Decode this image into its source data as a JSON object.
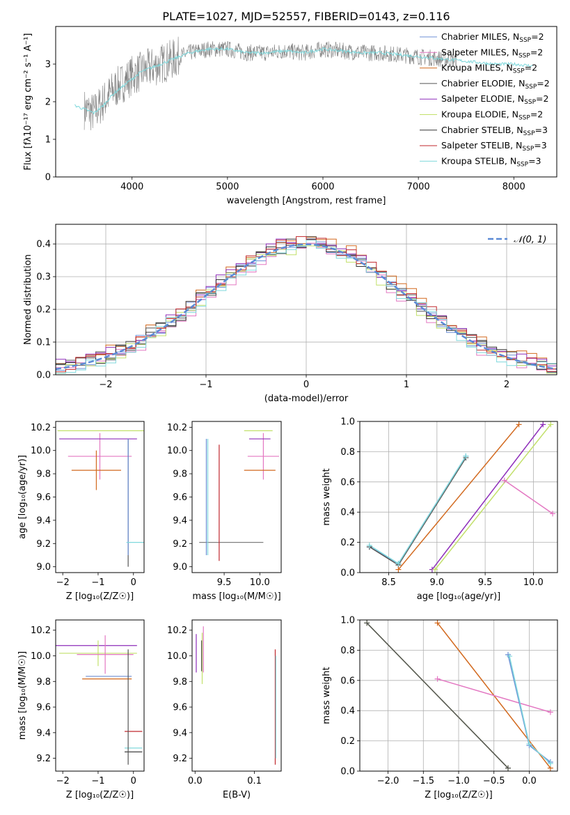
{
  "figure": {
    "title": "PLATE=1027, MJD=52557, FIBERID=0143, z=0.116"
  },
  "legend_entries": [
    {
      "label": "Chabrier MILES, N",
      "sub": "SSP",
      "eq": "=2",
      "color": "#6b8fd6"
    },
    {
      "label": "Salpeter MILES, N",
      "sub": "SSP",
      "eq": "=2",
      "color": "#e377c2"
    },
    {
      "label": "Kroupa MILES, N",
      "sub": "SSP",
      "eq": "=2",
      "color": "#d2691e"
    },
    {
      "label": "Chabrier ELODIE, N",
      "sub": "SSP",
      "eq": "=2",
      "color": "#555555"
    },
    {
      "label": "Salpeter ELODIE, N",
      "sub": "SSP",
      "eq": "=2",
      "color": "#8e2dba"
    },
    {
      "label": "Kroupa ELODIE, N",
      "sub": "SSP",
      "eq": "=2",
      "color": "#c2e06a"
    },
    {
      "label": "Chabrier STELIB, N",
      "sub": "SSP",
      "eq": "=3",
      "color": "#333333"
    },
    {
      "label": "Salpeter STELIB, N",
      "sub": "SSP",
      "eq": "=3",
      "color": "#c0282d"
    },
    {
      "label": "Kroupa STELIB, N",
      "sub": "SSP",
      "eq": "=3",
      "color": "#7fd8dc"
    }
  ],
  "chart_data": [
    {
      "id": "spectrum",
      "type": "line",
      "xlabel": "wavelength [Angstrom, rest frame]",
      "ylabel": "Flux [fλ10⁻¹⁷ erg cm⁻² s⁻¹ A⁻¹]",
      "xlim": [
        3200,
        8450
      ],
      "ylim": [
        0,
        4.0
      ],
      "xticks": [
        4000,
        5000,
        6000,
        7000,
        8000
      ],
      "yticks": [
        0,
        1,
        2,
        3
      ],
      "grid": false,
      "legend": "upper-right",
      "series": [
        {
          "name": "data",
          "color": "#808080",
          "x": [
            3500,
            3600,
            3700,
            3800,
            3900,
            4000,
            4200,
            4400,
            4600,
            4800,
            5000,
            5200,
            5400,
            5600,
            5800,
            6000,
            6200,
            6400,
            6600,
            6800,
            7000,
            7200,
            7400
          ],
          "y": [
            1.8,
            1.7,
            2.0,
            2.3,
            2.5,
            2.7,
            2.9,
            3.1,
            3.3,
            3.4,
            3.4,
            3.3,
            3.3,
            3.35,
            3.3,
            3.4,
            3.35,
            3.3,
            3.3,
            3.25,
            3.2,
            3.15,
            3.1
          ]
        },
        {
          "name": "model",
          "color": "#7fd8dc",
          "x": [
            3400,
            3500,
            3600,
            3700,
            3800,
            3900,
            4000,
            4100,
            4200,
            4400,
            4600,
            4800,
            5000,
            5200,
            5400,
            5600,
            5800,
            6000,
            6200,
            6400,
            6600,
            6800,
            7000,
            7200,
            7400,
            7600,
            7800,
            8000,
            8200
          ],
          "y": [
            1.9,
            1.8,
            1.7,
            1.9,
            2.2,
            2.4,
            2.6,
            2.8,
            2.9,
            3.1,
            3.3,
            3.4,
            3.4,
            3.3,
            3.3,
            3.35,
            3.3,
            3.4,
            3.35,
            3.3,
            3.3,
            3.25,
            3.2,
            3.15,
            3.1,
            3.05,
            3.0,
            3.0,
            2.95
          ]
        }
      ]
    },
    {
      "id": "residuals",
      "type": "line",
      "xlabel": "(data-model)/error",
      "ylabel": "Normed distribution",
      "xlim": [
        -2.5,
        2.5
      ],
      "ylim": [
        0,
        0.46
      ],
      "xticks": [
        -2,
        -1,
        0,
        1,
        2
      ],
      "yticks": [
        0.0,
        0.1,
        0.2,
        0.3,
        0.4
      ],
      "grid": true,
      "legend": "upper-right",
      "reference": {
        "name": "𝒩(0, 1)",
        "mu": 0,
        "sigma": 1,
        "color": "#5b8ad6"
      },
      "bin_width": 0.1,
      "series": [
        {
          "color": "#6b8fd6",
          "offset": 0.0
        },
        {
          "color": "#e377c2",
          "offset": -0.012
        },
        {
          "color": "#d2691e",
          "offset": 0.014
        },
        {
          "color": "#555555",
          "offset": 0.005
        },
        {
          "color": "#8e2dba",
          "offset": 0.01
        },
        {
          "color": "#c2e06a",
          "offset": -0.008
        },
        {
          "color": "#333333",
          "offset": 0.003
        },
        {
          "color": "#c0282d",
          "offset": 0.006
        },
        {
          "color": "#7fd8dc",
          "offset": -0.004
        }
      ]
    },
    {
      "id": "age_vs_Z",
      "type": "scatter",
      "xlabel": "Z [log₁₀(Z/Z☉)]",
      "ylabel": "age  [log₁₀(age/yr)]",
      "xlim": [
        -2.2,
        0.3
      ],
      "ylim": [
        8.95,
        10.25
      ],
      "xticks": [
        -2,
        -1,
        0
      ],
      "yticks": [
        9.0,
        9.2,
        9.4,
        9.6,
        9.8,
        10.0,
        10.2
      ],
      "grid": false,
      "points": [
        {
          "x": -0.95,
          "y": 9.95,
          "xerr": 0.9,
          "yerr": 0.2,
          "color": "#e377c2"
        },
        {
          "x": -0.9,
          "y": 10.17,
          "xerr": 1.25,
          "yerr": 0.0,
          "color": "#c2e06a"
        },
        {
          "x": -1.0,
          "y": 10.1,
          "xerr": 1.1,
          "yerr": 0.0,
          "color": "#8e2dba"
        },
        {
          "x": -1.05,
          "y": 9.83,
          "xerr": 0.7,
          "yerr": 0.17,
          "color": "#d2691e"
        },
        {
          "x": -0.15,
          "y": 9.55,
          "xerr": 0.0,
          "yerr": 0.55,
          "color": "#555555"
        },
        {
          "x": -0.15,
          "y": 9.6,
          "xerr": 0.0,
          "yerr": 0.5,
          "color": "#6b8fd6"
        },
        {
          "x": 0.05,
          "y": 9.21,
          "xerr": 0.25,
          "yerr": 0.0,
          "color": "#7fd8dc"
        }
      ]
    },
    {
      "id": "age_vs_mass",
      "type": "scatter",
      "xlabel": "mass [log₁₀(M/M☉)]",
      "ylabel": "",
      "xlim": [
        9.05,
        10.3
      ],
      "ylim": [
        8.95,
        10.25
      ],
      "xticks": [
        9.5,
        10.0
      ],
      "yticks": [
        9.0,
        9.2,
        9.4,
        9.6,
        9.8,
        10.0,
        10.2
      ],
      "grid": false,
      "points": [
        {
          "x": 9.6,
          "y": 9.21,
          "xerr": 0.45,
          "yerr": 0.0,
          "color": "#808080"
        },
        {
          "x": 9.43,
          "y": 9.55,
          "xerr": 0.0,
          "yerr": 0.5,
          "color": "#c0282d"
        },
        {
          "x": 9.25,
          "y": 9.6,
          "xerr": 0.0,
          "yerr": 0.5,
          "color": "#6b8fd6"
        },
        {
          "x": 9.27,
          "y": 9.6,
          "xerr": 0.0,
          "yerr": 0.5,
          "color": "#7fd8dc"
        },
        {
          "x": 10.05,
          "y": 9.95,
          "xerr": 0.22,
          "yerr": 0.2,
          "color": "#e377c2"
        },
        {
          "x": 9.98,
          "y": 10.17,
          "xerr": 0.2,
          "yerr": 0.0,
          "color": "#c2e06a"
        },
        {
          "x": 10.0,
          "y": 10.1,
          "xerr": 0.15,
          "yerr": 0.0,
          "color": "#8e2dba"
        },
        {
          "x": 10.0,
          "y": 9.83,
          "xerr": 0.22,
          "yerr": 0.0,
          "color": "#d2691e"
        }
      ]
    },
    {
      "id": "weight_vs_age",
      "type": "line",
      "xlabel": "age  [log₁₀(age/yr)]",
      "ylabel": "mass weight",
      "xlim": [
        8.2,
        10.25
      ],
      "ylim": [
        0,
        1.0
      ],
      "xticks": [
        8.5,
        9.0,
        9.5,
        10.0
      ],
      "yticks": [
        0.0,
        0.2,
        0.4,
        0.6,
        0.8,
        1.0
      ],
      "grid": true,
      "series": [
        {
          "color": "#6b8fd6",
          "x": [
            8.3,
            8.6,
            9.3
          ],
          "y": [
            0.17,
            0.06,
            0.77
          ]
        },
        {
          "color": "#555555",
          "x": [
            8.3,
            8.6,
            9.3
          ],
          "y": [
            0.17,
            0.05,
            0.76
          ]
        },
        {
          "color": "#7fd8dc",
          "x": [
            8.3,
            8.6,
            9.3
          ],
          "y": [
            0.18,
            0.06,
            0.77
          ]
        },
        {
          "color": "#d2691e",
          "x": [
            8.6,
            9.85
          ],
          "y": [
            0.02,
            0.98
          ]
        },
        {
          "color": "#8e2dba",
          "x": [
            8.95,
            10.1
          ],
          "y": [
            0.02,
            0.98
          ]
        },
        {
          "color": "#c2e06a",
          "x": [
            8.98,
            10.18
          ],
          "y": [
            0.02,
            0.98
          ]
        },
        {
          "color": "#e377c2",
          "x": [
            9.7,
            10.2
          ],
          "y": [
            0.61,
            0.39
          ]
        }
      ]
    },
    {
      "id": "mass_vs_Z",
      "type": "scatter",
      "xlabel": "Z [log₁₀(Z/Z☉)]",
      "ylabel": "mass [log₁₀(M/M☉)]",
      "xlim": [
        -2.2,
        0.3
      ],
      "ylim": [
        9.1,
        10.28
      ],
      "xticks": [
        -2,
        -1,
        0
      ],
      "yticks": [
        9.2,
        9.4,
        9.6,
        9.8,
        10.0,
        10.2
      ],
      "grid": false,
      "points": [
        {
          "x": -1.1,
          "y": 10.08,
          "xerr": 1.2,
          "yerr": 0.0,
          "color": "#8e2dba"
        },
        {
          "x": -1.0,
          "y": 10.02,
          "xerr": 1.1,
          "yerr": 0.1,
          "color": "#c2e06a"
        },
        {
          "x": -0.8,
          "y": 10.01,
          "xerr": 0.8,
          "yerr": 0.15,
          "color": "#e377c2"
        },
        {
          "x": -0.7,
          "y": 9.84,
          "xerr": 0.65,
          "yerr": 0.0,
          "color": "#6b8fd6"
        },
        {
          "x": -0.75,
          "y": 9.82,
          "xerr": 0.7,
          "yerr": 0.0,
          "color": "#d2691e"
        },
        {
          "x": 0.0,
          "y": 9.41,
          "xerr": 0.25,
          "yerr": 0.0,
          "color": "#c0282d"
        },
        {
          "x": 0.0,
          "y": 9.28,
          "xerr": 0.25,
          "yerr": 0.0,
          "color": "#7fd8dc"
        },
        {
          "x": 0.0,
          "y": 9.25,
          "xerr": 0.25,
          "yerr": 0.0,
          "color": "#333333"
        },
        {
          "x": -0.15,
          "y": 9.6,
          "xerr": 0.0,
          "yerr": 0.45,
          "color": "#555555"
        }
      ]
    },
    {
      "id": "mass_vs_ebv",
      "type": "scatter",
      "xlabel": "E(B-V)",
      "ylabel": "",
      "xlim": [
        -0.005,
        0.145
      ],
      "ylim": [
        9.1,
        10.28
      ],
      "xticks": [
        0.0,
        0.1
      ],
      "yticks": [
        9.2,
        9.4,
        9.6,
        9.8,
        10.0,
        10.2
      ],
      "grid": false,
      "points": [
        {
          "x": 0.002,
          "y": 10.02,
          "xerr": 0.0,
          "yerr": 0.15,
          "color": "#8e2dba"
        },
        {
          "x": 0.012,
          "y": 9.98,
          "xerr": 0.0,
          "yerr": 0.2,
          "color": "#c2e06a"
        },
        {
          "x": 0.014,
          "y": 10.05,
          "xerr": 0.0,
          "yerr": 0.18,
          "color": "#e377c2"
        },
        {
          "x": 0.011,
          "y": 10.0,
          "xerr": 0.0,
          "yerr": 0.12,
          "color": "#555555"
        },
        {
          "x": 0.135,
          "y": 9.6,
          "xerr": 0.0,
          "yerr": 0.45,
          "color": "#c0282d"
        },
        {
          "x": 0.136,
          "y": 9.6,
          "xerr": 0.0,
          "yerr": 0.4,
          "color": "#7fd8dc"
        }
      ]
    },
    {
      "id": "weight_vs_Z",
      "type": "line",
      "xlabel": "Z [log₁₀(Z/Z☉)]",
      "ylabel": "mass weight",
      "xlim": [
        -2.4,
        0.4
      ],
      "ylim": [
        0,
        1.0
      ],
      "xticks": [
        -2.0,
        -1.5,
        -1.0,
        -0.5,
        0.0
      ],
      "yticks": [
        0.0,
        0.2,
        0.4,
        0.6,
        0.8,
        1.0
      ],
      "grid": true,
      "series": [
        {
          "color": "#c2e06a",
          "x": [
            -2.3,
            -0.3
          ],
          "y": [
            0.98,
            0.02
          ]
        },
        {
          "color": "#555555",
          "x": [
            -2.3,
            -0.3
          ],
          "y": [
            0.98,
            0.02
          ]
        },
        {
          "color": "#d2691e",
          "x": [
            -1.3,
            0.3
          ],
          "y": [
            0.98,
            0.02
          ]
        },
        {
          "color": "#e377c2",
          "x": [
            -1.3,
            0.3
          ],
          "y": [
            0.61,
            0.39
          ]
        },
        {
          "color": "#6b8fd6",
          "x": [
            -0.3,
            0.0,
            0.3
          ],
          "y": [
            0.77,
            0.17,
            0.06
          ]
        },
        {
          "color": "#7fd8dc",
          "x": [
            -0.28,
            0.0,
            0.3
          ],
          "y": [
            0.76,
            0.18,
            0.05
          ]
        }
      ]
    }
  ]
}
